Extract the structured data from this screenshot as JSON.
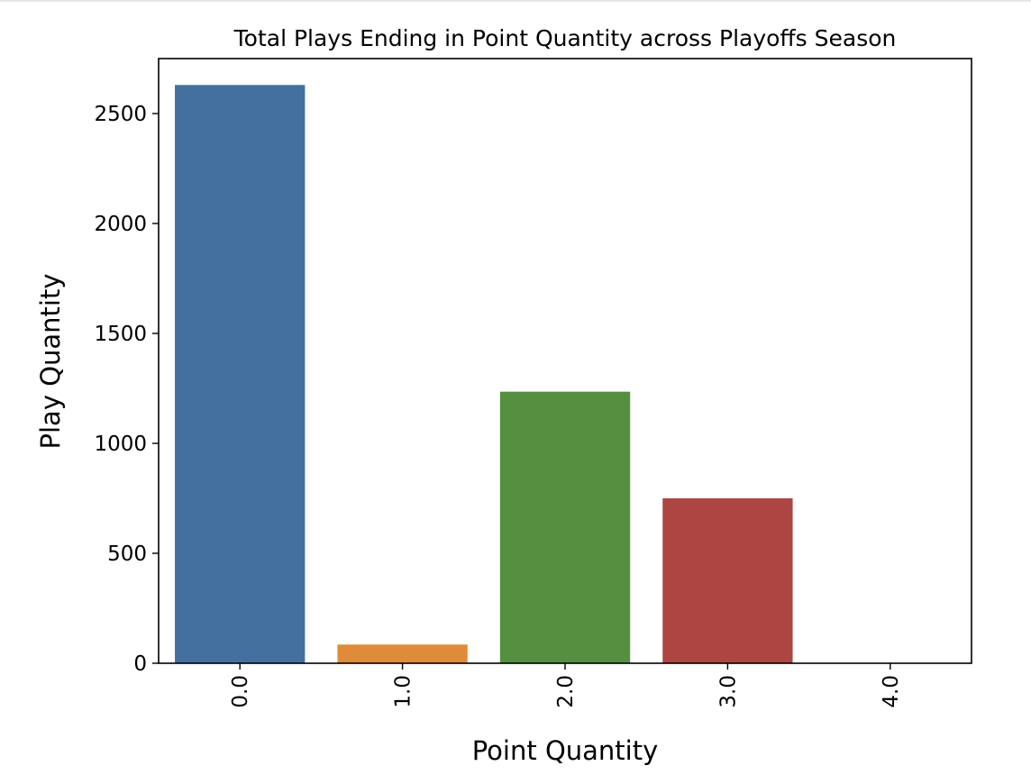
{
  "chart_data": {
    "type": "bar",
    "title": "Total Plays Ending in Point Quantity across Playoffs Season",
    "xlabel": "Point Quantity",
    "ylabel": "Play Quantity",
    "categories": [
      "0.0",
      "1.0",
      "2.0",
      "3.0",
      "4.0"
    ],
    "values": [
      2630,
      85,
      1235,
      750,
      2
    ],
    "colors": [
      "#4470a0",
      "#e08b37",
      "#54903f",
      "#ad4542",
      "#8b6fad"
    ],
    "yticks": [
      "0",
      "500",
      "1000",
      "1500",
      "2000",
      "2500"
    ],
    "ylim": [
      0,
      2750
    ],
    "grid": false,
    "legend": "none"
  }
}
